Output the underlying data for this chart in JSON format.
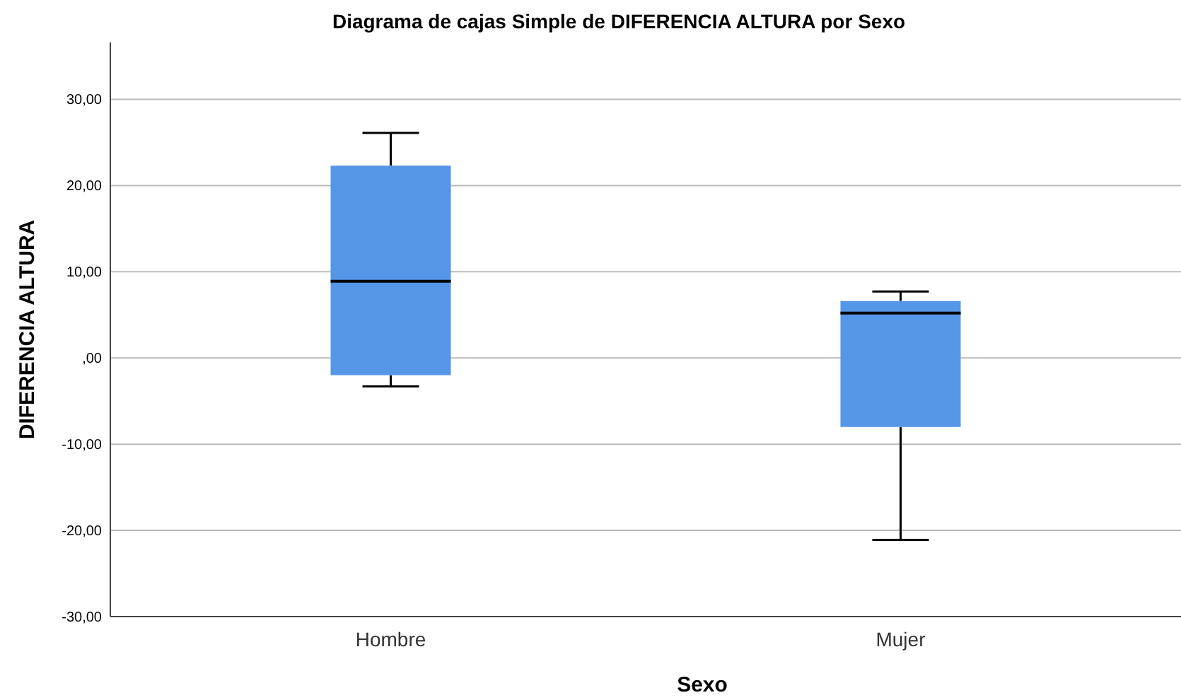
{
  "chart_data": {
    "type": "box",
    "title": "Diagrama de cajas Simple de DIFERENCIA ALTURA por Sexo",
    "xlabel": "Sexo",
    "ylabel": "DIFERENCIA ALTURA",
    "categories": [
      "Hombre",
      "Mujer"
    ],
    "boxes": [
      {
        "low": -3.3,
        "q1": -2.0,
        "median": 8.9,
        "q3": 22.3,
        "high": 26.1
      },
      {
        "low": -21.1,
        "q1": -8.0,
        "median": 5.2,
        "q3": 6.6,
        "high": 7.7
      }
    ],
    "color": "#5596e6",
    "ylim": [
      -30,
      36.6
    ],
    "yticks": [
      {
        "value": -30,
        "label": "-30,00"
      },
      {
        "value": -20,
        "label": "-20,00"
      },
      {
        "value": -10,
        "label": "-10,00"
      },
      {
        "value": 0,
        "label": ",00"
      },
      {
        "value": 10,
        "label": "10,00"
      },
      {
        "value": 20,
        "label": "20,00"
      },
      {
        "value": 30,
        "label": "30,00"
      }
    ],
    "grid": "y"
  }
}
